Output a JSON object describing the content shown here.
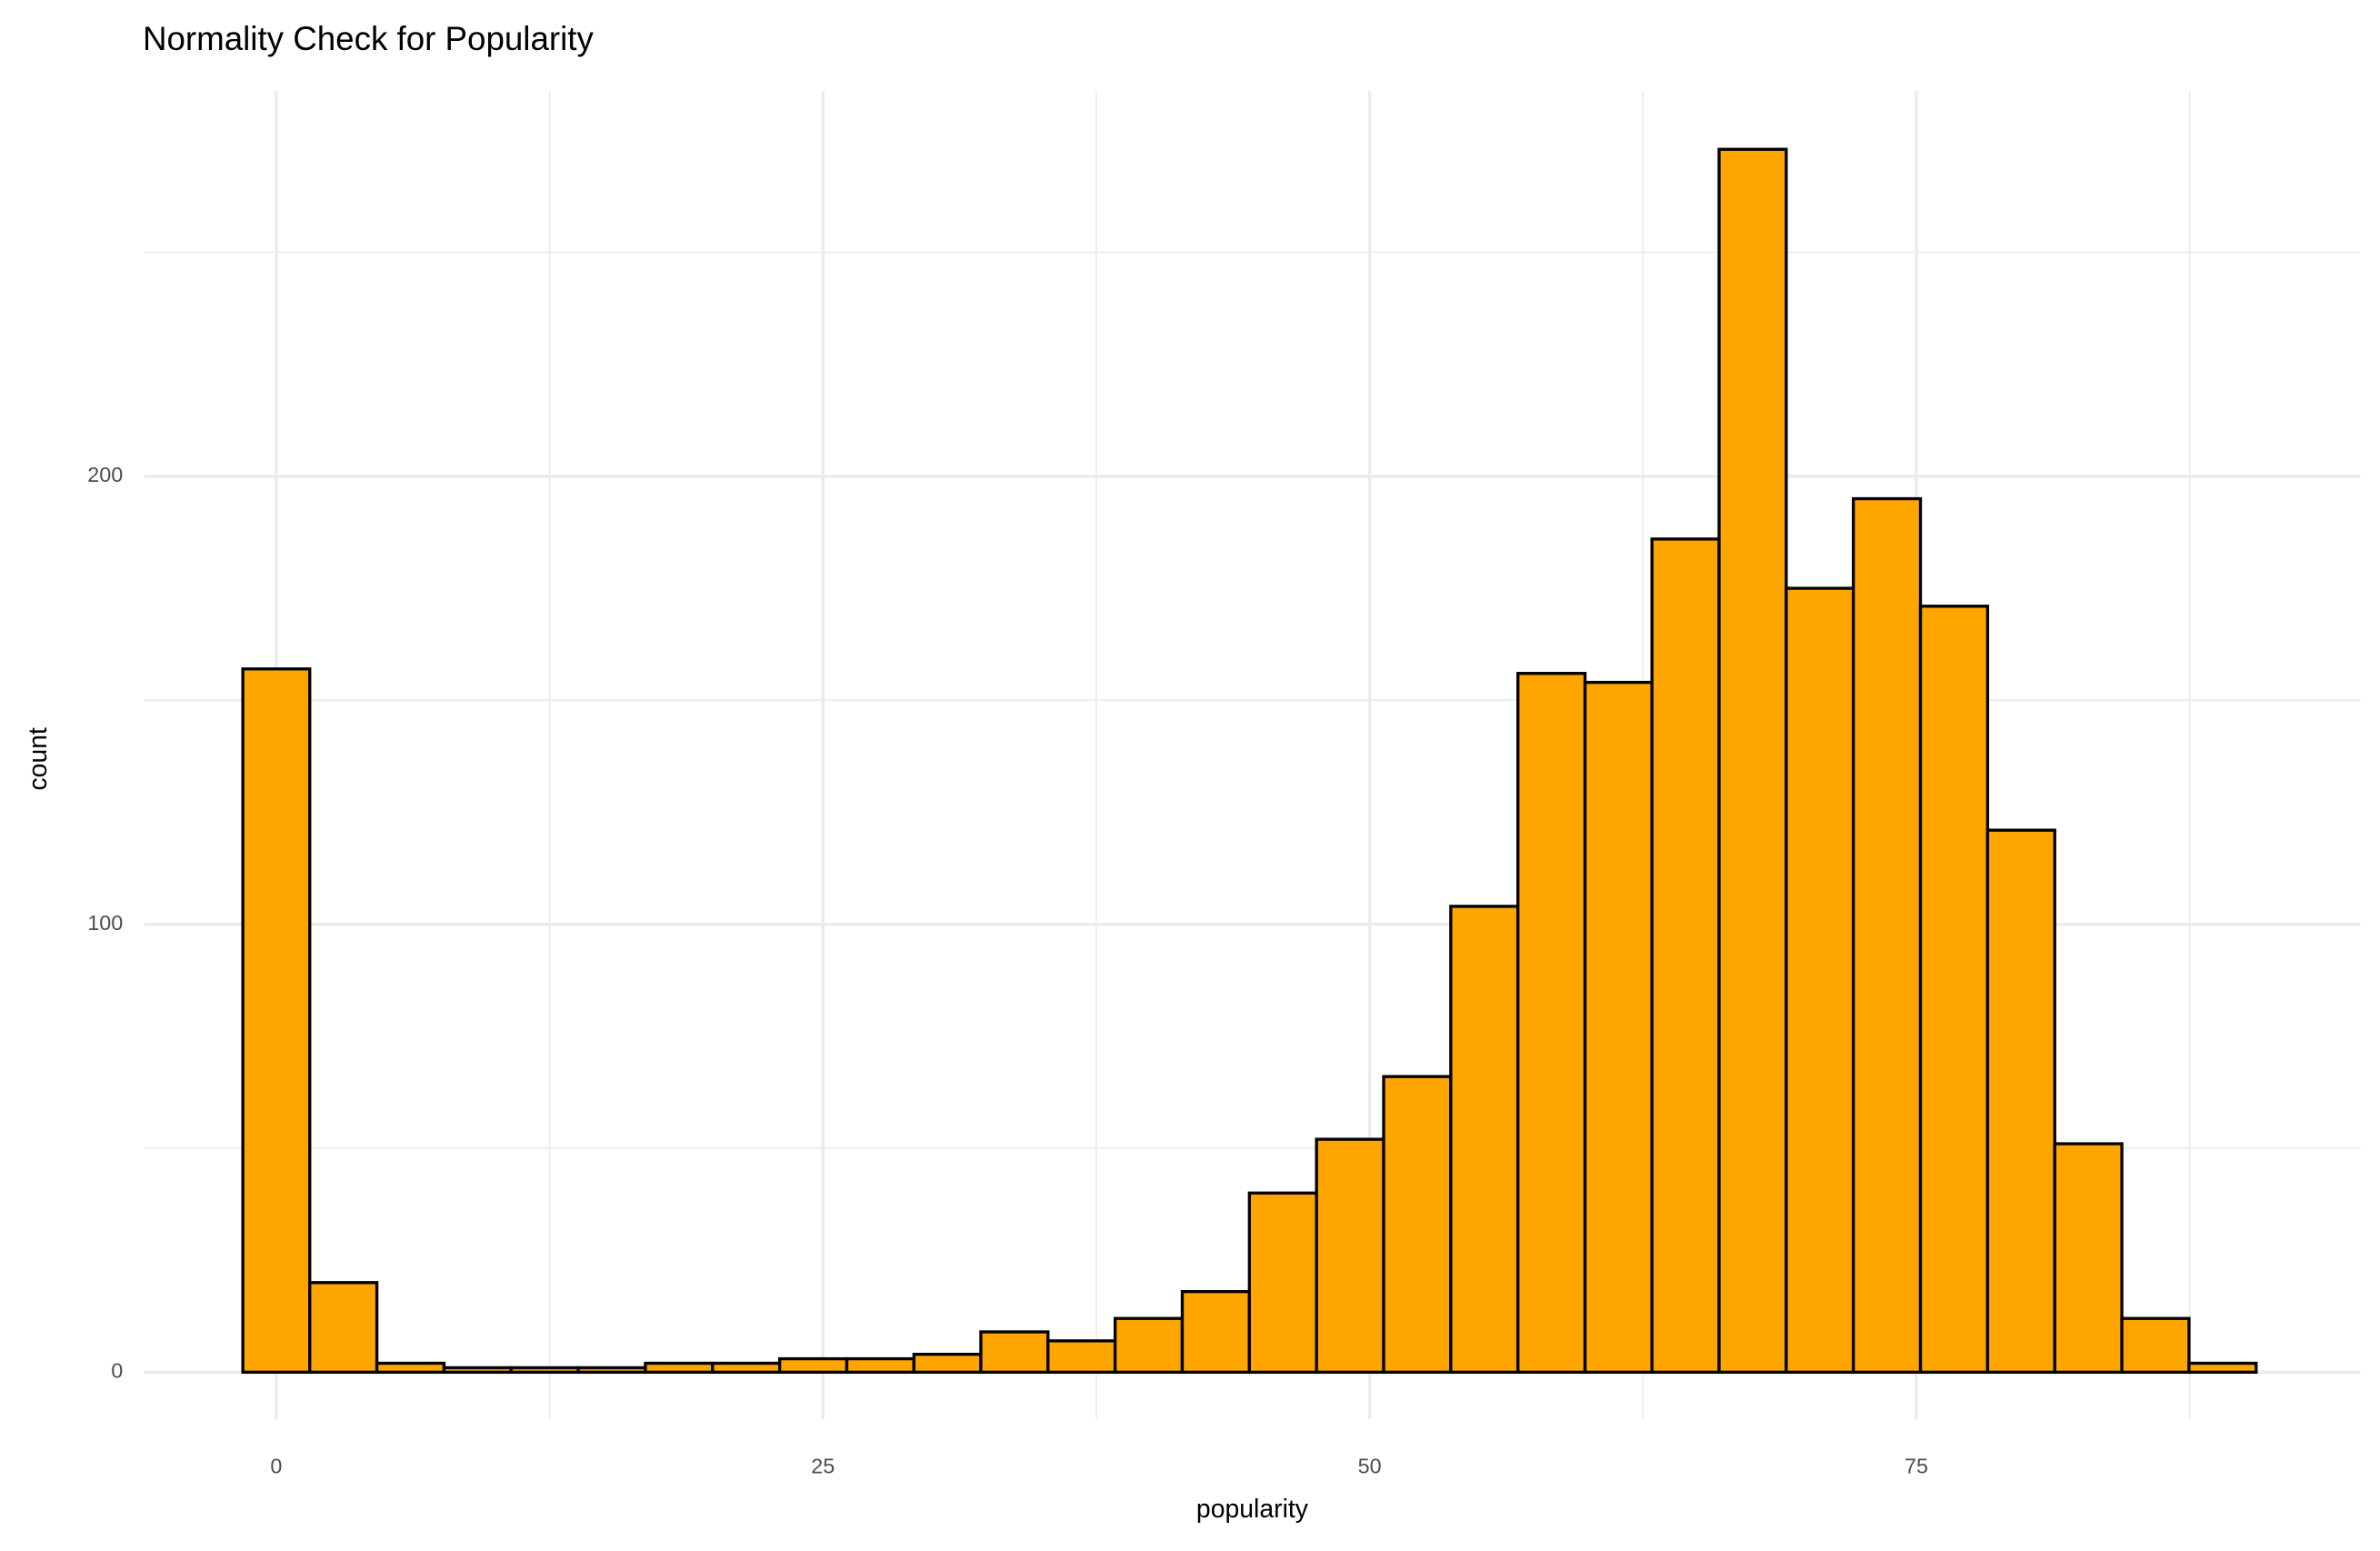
{
  "chart_data": {
    "type": "histogram",
    "title": "Normality Check for Popularity",
    "x_label": "popularity",
    "y_label": "count",
    "bins": [
      -1.53,
      1.53,
      4.6,
      7.67,
      10.74,
      13.81,
      16.88,
      19.95,
      23.02,
      26.09,
      29.16,
      32.22,
      35.29,
      38.36,
      41.43,
      44.5,
      47.57,
      50.64,
      53.71,
      56.78,
      59.85,
      62.91,
      65.98,
      69.05,
      72.12,
      75.19,
      78.26,
      81.33,
      84.4,
      87.47,
      90.54
    ],
    "values": [
      157,
      20,
      2,
      1,
      1,
      1,
      2,
      2,
      3,
      3,
      4,
      9,
      7,
      12,
      18,
      40,
      52,
      66,
      104,
      156,
      154,
      186,
      273,
      175,
      195,
      171,
      121,
      51,
      12,
      2
    ],
    "color": "#ffa500",
    "edge_color": "#000000",
    "xlim": [
      -6.04,
      95.3
    ],
    "ylim": [
      -10.5,
      286
    ],
    "xticks": [
      0,
      25,
      50,
      75
    ],
    "yticks": [
      0,
      100,
      200
    ],
    "grid": true
  }
}
